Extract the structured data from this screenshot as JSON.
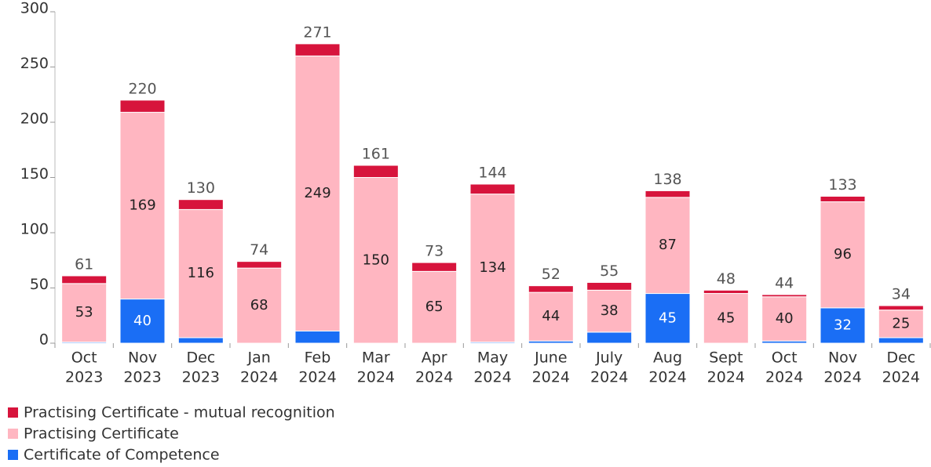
{
  "chart_data": {
    "type": "bar",
    "stacked": true,
    "categories": [
      [
        "Oct",
        "2023"
      ],
      [
        "Nov",
        "2023"
      ],
      [
        "Dec",
        "2023"
      ],
      [
        "Jan",
        "2024"
      ],
      [
        "Feb",
        "2024"
      ],
      [
        "Mar",
        "2024"
      ],
      [
        "Apr",
        "2024"
      ],
      [
        "May",
        "2024"
      ],
      [
        "June",
        "2024"
      ],
      [
        "July",
        "2024"
      ],
      [
        "Aug",
        "2024"
      ],
      [
        "Sept",
        "2024"
      ],
      [
        "Oct",
        "2024"
      ],
      [
        "Nov",
        "2024"
      ],
      [
        "Dec",
        "2024"
      ]
    ],
    "series": [
      {
        "name": "Certificate of Competence",
        "color": "#1a6ef5",
        "label_color": "#ffffff",
        "labels": true,
        "values": [
          1,
          40,
          5,
          0,
          11,
          0,
          0,
          1,
          2,
          10,
          45,
          0,
          2,
          32,
          5
        ]
      },
      {
        "name": "Practising Certificate",
        "color": "#ffb6c1",
        "label_color": "#222222",
        "labels": true,
        "values": [
          53,
          169,
          116,
          68,
          249,
          150,
          65,
          134,
          44,
          38,
          87,
          45,
          40,
          96,
          25
        ]
      },
      {
        "name": "Practising Certificate - mutual recognition",
        "color": "#d7143c",
        "label_color": "#ffffff",
        "labels": false,
        "values": [
          7,
          11,
          9,
          6,
          11,
          11,
          8,
          9,
          6,
          7,
          6,
          3,
          2,
          5,
          4
        ]
      }
    ],
    "totals": [
      61,
      220,
      130,
      74,
      271,
      161,
      73,
      144,
      52,
      55,
      138,
      48,
      44,
      133,
      34
    ],
    "ylim": [
      0,
      300
    ],
    "yticks": [
      0,
      50,
      100,
      150,
      200,
      250,
      300
    ],
    "legend": "bottom-left"
  }
}
